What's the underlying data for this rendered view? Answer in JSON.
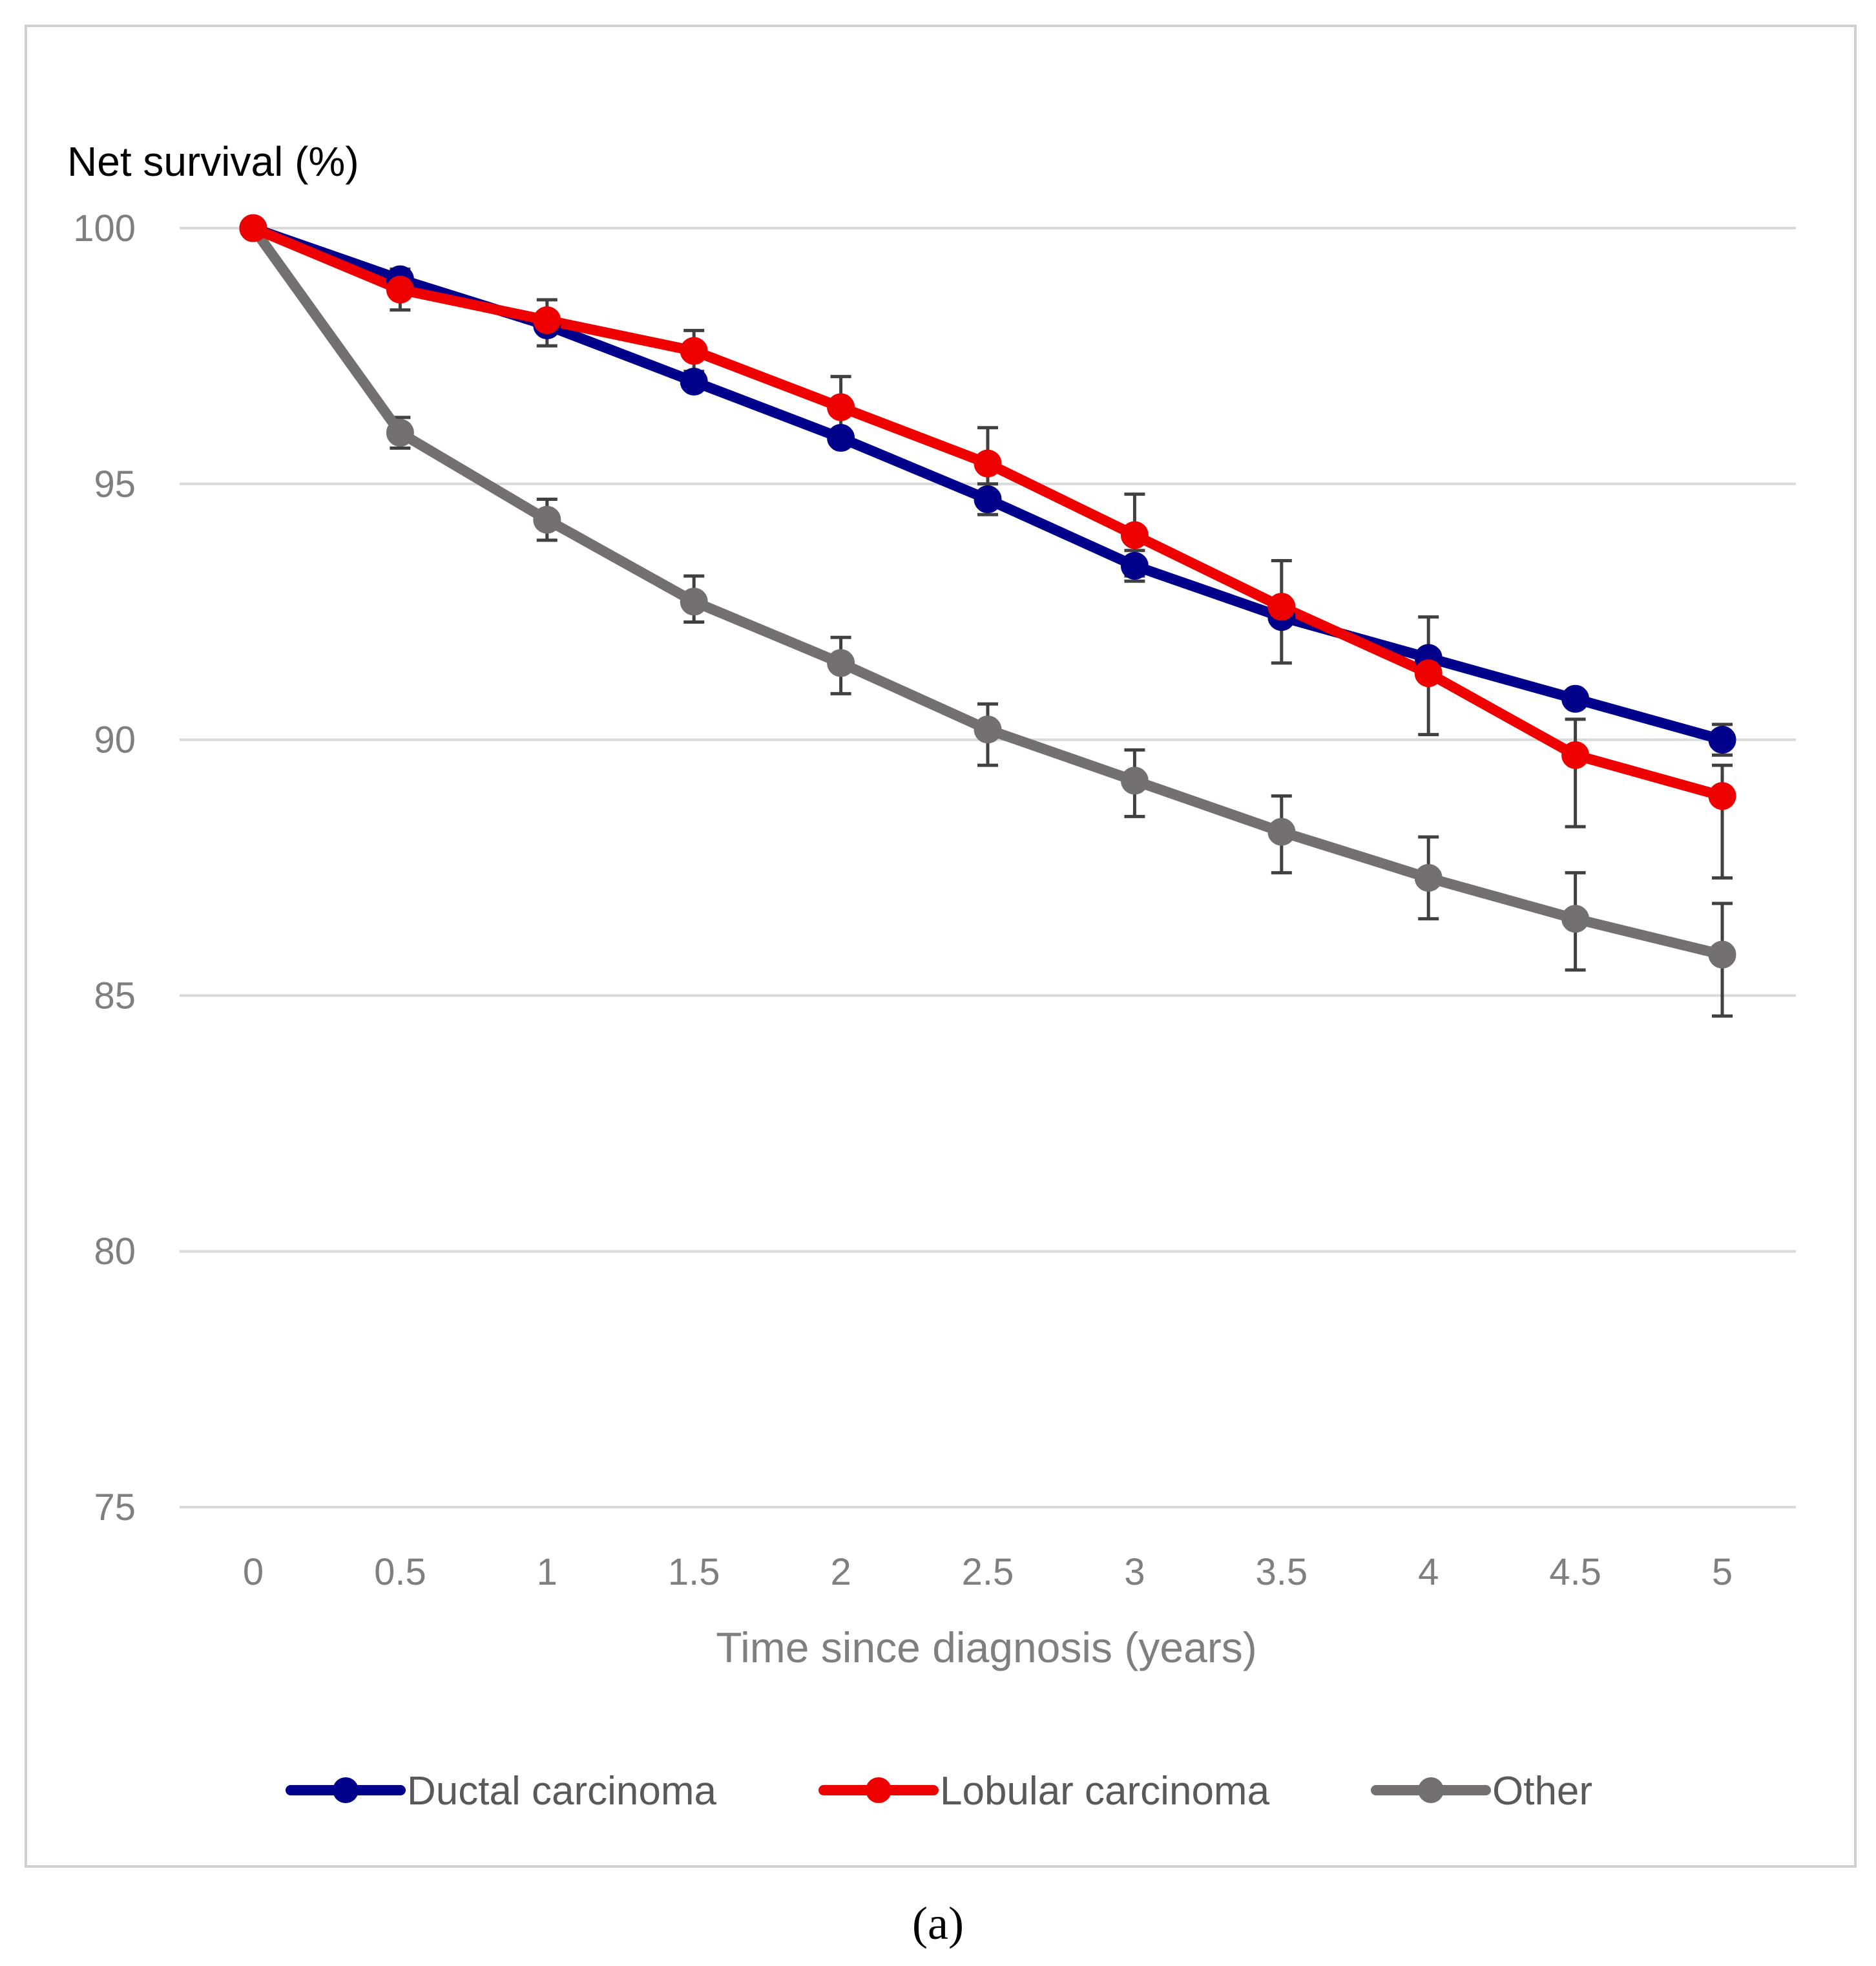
{
  "caption": "(a)",
  "chart_data": {
    "type": "line",
    "ylabel": "Net survival (%)",
    "xlabel": "Time since diagnosis (years)",
    "x": [
      0,
      0.5,
      1,
      1.5,
      2,
      2.5,
      3,
      3.5,
      4,
      4.5,
      5
    ],
    "x_tick_labels": [
      "0",
      "0.5",
      "1",
      "1.5",
      "2",
      "2.5",
      "3",
      "3.5",
      "4",
      "4.5",
      "5"
    ],
    "ylim": [
      75,
      100
    ],
    "y_ticks": [
      75,
      80,
      85,
      90,
      95,
      100
    ],
    "grid": "horizontal",
    "legend_position": "bottom",
    "series": [
      {
        "name": "Ductal carcinoma",
        "color": "#00008b",
        "values": [
          100,
          99.0,
          98.1,
          97.0,
          95.9,
          94.7,
          93.4,
          92.4,
          91.6,
          90.8,
          90.0
        ],
        "error_low": [
          null,
          null,
          null,
          null,
          null,
          94.4,
          93.1,
          null,
          null,
          null,
          89.7
        ],
        "error_high": [
          null,
          null,
          null,
          null,
          null,
          95.0,
          93.7,
          null,
          null,
          null,
          90.3
        ]
      },
      {
        "name": "Lobular carcinoma",
        "color": "#ee0000",
        "values": [
          100,
          98.8,
          98.2,
          97.6,
          96.5,
          95.4,
          94.0,
          92.6,
          91.3,
          89.7,
          88.9
        ],
        "error_low": [
          null,
          98.4,
          97.7,
          97.2,
          95.9,
          94.7,
          93.2,
          91.5,
          90.1,
          88.3,
          87.3
        ],
        "error_high": [
          null,
          99.2,
          98.6,
          98.0,
          97.1,
          96.1,
          94.8,
          93.5,
          92.4,
          90.4,
          89.5
        ]
      },
      {
        "name": "Other",
        "color": "#747070",
        "values": [
          100,
          96.0,
          94.3,
          92.7,
          91.5,
          90.2,
          89.2,
          88.2,
          87.3,
          86.5,
          85.8
        ],
        "error_low": [
          null,
          95.7,
          93.9,
          92.3,
          90.9,
          89.5,
          88.5,
          87.4,
          86.5,
          85.5,
          84.6
        ],
        "error_high": [
          null,
          96.3,
          94.7,
          93.2,
          92.0,
          90.7,
          89.8,
          88.9,
          88.1,
          87.4,
          86.8
        ]
      }
    ]
  }
}
